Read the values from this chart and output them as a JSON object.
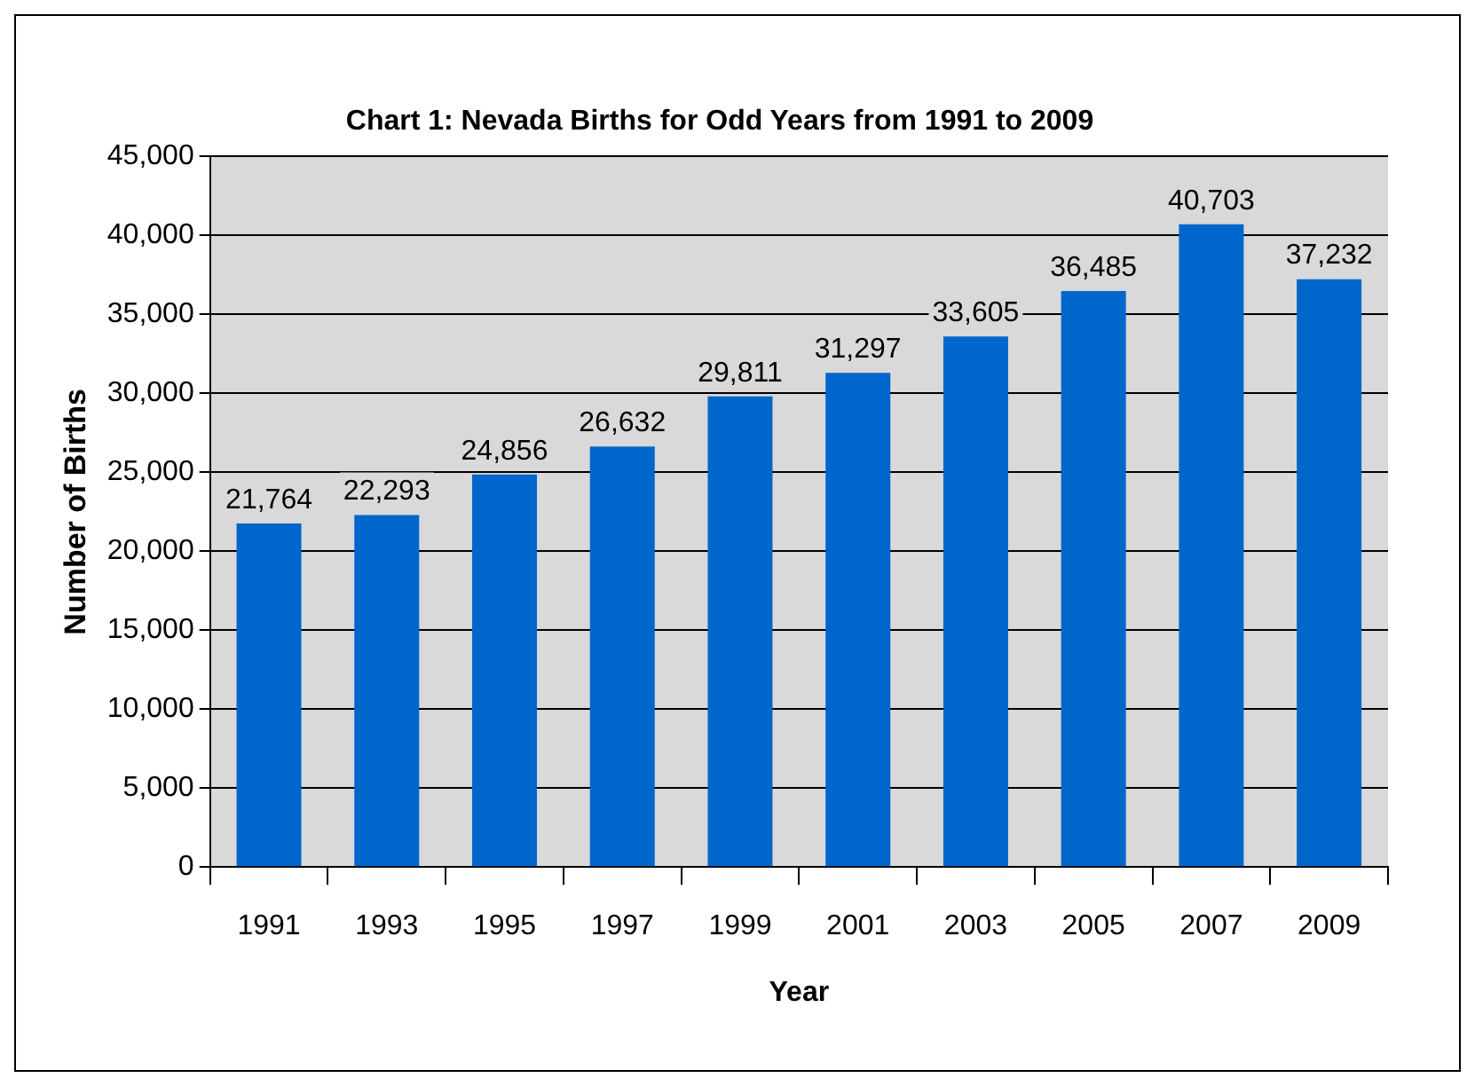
{
  "chart_data": {
    "type": "bar",
    "title": "Chart 1: Nevada Births for Odd Years from 1991 to 2009",
    "xlabel": "Year",
    "ylabel": "Number of Births",
    "categories": [
      "1991",
      "1993",
      "1995",
      "1997",
      "1999",
      "2001",
      "2003",
      "2005",
      "2007",
      "2009"
    ],
    "values": [
      21764,
      22293,
      24856,
      26632,
      29811,
      31297,
      33605,
      36485,
      40703,
      37232
    ],
    "value_labels": [
      "21,764",
      "22,293",
      "24,856",
      "26,632",
      "29,811",
      "31,297",
      "33,605",
      "36,485",
      "40,703",
      "37,232"
    ],
    "color": "#0066cc",
    "ylim": [
      0,
      45000
    ],
    "yticks": [
      0,
      {
        "value": 5000,
        "label": "5,000"
      },
      {
        "value": 10000,
        "label": "10,000"
      },
      {
        "value": 15000,
        "label": "15,000"
      },
      {
        "value": 20000,
        "label": "20,000"
      },
      {
        "value": 25000,
        "label": "25,000"
      },
      {
        "value": 30000,
        "label": "30,000"
      },
      {
        "value": 35000,
        "label": "35,000"
      },
      {
        "value": 40000,
        "label": "40,000"
      },
      {
        "value": 45000,
        "label": "45,000"
      }
    ],
    "grid": "y"
  }
}
